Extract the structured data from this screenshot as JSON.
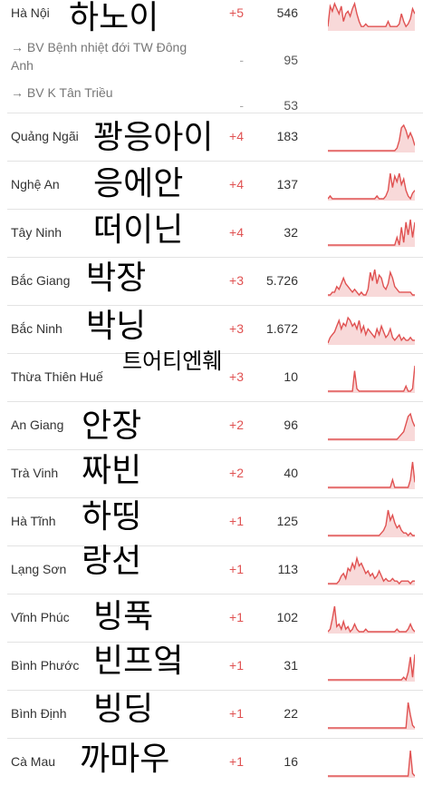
{
  "accent": "#e05252",
  "rows": [
    {
      "name": "Hà Nội",
      "ko": "하노이",
      "delta": "+5",
      "total": "546",
      "spark": [
        1,
        9,
        7,
        10,
        8,
        6,
        9,
        3,
        6,
        7,
        5,
        8,
        10,
        6,
        3,
        1,
        1,
        2,
        1,
        1,
        1,
        1,
        1,
        1,
        1,
        1,
        1,
        3,
        1,
        1,
        1,
        1,
        2,
        6,
        3,
        1,
        2,
        4,
        8,
        6
      ]
    },
    {
      "name": "→ BV Bệnh nhiệt đới TW Đông Anh",
      "delta": "-",
      "total": "95",
      "sub": true
    },
    {
      "name": "→ BV K Tân Triều",
      "delta": "-",
      "total": "53",
      "sub": true
    },
    {
      "name": "Quảng Ngãi",
      "ko": "꽝응아이",
      "delta": "+4",
      "total": "183",
      "spark": [
        0,
        0,
        0,
        0,
        0,
        0,
        0,
        0,
        0,
        0,
        0,
        0,
        0,
        0,
        0,
        0,
        0,
        0,
        0,
        0,
        0,
        0,
        0,
        0,
        0,
        0,
        0,
        0,
        0,
        0,
        0,
        1,
        4,
        9,
        10,
        8,
        5,
        7,
        5,
        2
      ]
    },
    {
      "name": "Nghệ An",
      "ko": "응에안",
      "delta": "+4",
      "total": "137",
      "spark": [
        0,
        1,
        0,
        0,
        0,
        0,
        0,
        0,
        0,
        0,
        0,
        0,
        0,
        0,
        0,
        0,
        0,
        0,
        0,
        0,
        0,
        0,
        1,
        0,
        0,
        0,
        1,
        3,
        9,
        4,
        8,
        6,
        9,
        5,
        7,
        3,
        1,
        0,
        2,
        3
      ]
    },
    {
      "name": "Tây Ninh",
      "ko": "떠이닌",
      "delta": "+4",
      "total": "32",
      "spark": [
        0,
        0,
        0,
        0,
        0,
        0,
        0,
        0,
        0,
        0,
        0,
        0,
        0,
        0,
        0,
        0,
        0,
        0,
        0,
        0,
        0,
        0,
        0,
        0,
        0,
        0,
        0,
        0,
        0,
        0,
        0,
        3,
        0,
        7,
        1,
        9,
        4,
        10,
        3,
        9
      ]
    },
    {
      "name": "Bắc Giang",
      "ko": "박장",
      "delta": "+3",
      "total": "5.726",
      "spark": [
        0,
        0,
        1,
        1,
        3,
        2,
        4,
        6,
        4,
        3,
        2,
        1,
        2,
        1,
        0,
        1,
        0,
        0,
        2,
        8,
        5,
        9,
        4,
        7,
        6,
        3,
        2,
        4,
        8,
        6,
        3,
        2,
        1,
        1,
        1,
        1,
        1,
        1,
        0,
        0
      ]
    },
    {
      "name": "Bắc Ninh",
      "ko": "박닝",
      "delta": "+3",
      "total": "1.672",
      "spark": [
        0,
        2,
        3,
        4,
        6,
        8,
        5,
        7,
        6,
        9,
        8,
        6,
        7,
        5,
        8,
        4,
        6,
        3,
        5,
        4,
        3,
        2,
        5,
        3,
        6,
        4,
        2,
        3,
        5,
        2,
        1,
        2,
        3,
        1,
        2,
        1,
        1,
        2,
        1,
        1
      ]
    },
    {
      "name": "Thừa Thiên Huế",
      "ko": "트어티엔훼",
      "koSmall": true,
      "delta": "+3",
      "total": "10",
      "spark": [
        0,
        0,
        0,
        0,
        0,
        0,
        0,
        0,
        0,
        0,
        0,
        0,
        8,
        1,
        0,
        0,
        0,
        0,
        0,
        0,
        0,
        0,
        0,
        0,
        0,
        0,
        0,
        0,
        0,
        0,
        0,
        0,
        0,
        0,
        0,
        2,
        0,
        0,
        1,
        10
      ]
    },
    {
      "name": "An Giang",
      "ko": "안장",
      "delta": "+2",
      "total": "96",
      "spark": [
        0,
        0,
        0,
        0,
        0,
        0,
        0,
        0,
        0,
        0,
        0,
        0,
        0,
        0,
        0,
        0,
        0,
        0,
        0,
        0,
        0,
        0,
        0,
        0,
        0,
        0,
        0,
        0,
        0,
        0,
        0,
        0,
        1,
        2,
        3,
        6,
        9,
        10,
        7,
        5
      ]
    },
    {
      "name": "Trà Vinh",
      "ko": "짜빈",
      "delta": "+2",
      "total": "40",
      "spark": [
        0,
        0,
        0,
        0,
        0,
        0,
        0,
        0,
        0,
        0,
        0,
        0,
        0,
        0,
        0,
        0,
        0,
        0,
        0,
        0,
        0,
        0,
        0,
        0,
        0,
        0,
        0,
        0,
        0,
        3,
        0,
        0,
        0,
        0,
        0,
        0,
        0,
        3,
        10,
        2
      ]
    },
    {
      "name": "Hà Tĩnh",
      "ko": "하띵",
      "delta": "+1",
      "total": "125",
      "spark": [
        0,
        0,
        0,
        0,
        0,
        0,
        0,
        0,
        0,
        0,
        0,
        0,
        0,
        0,
        0,
        0,
        0,
        0,
        0,
        0,
        0,
        0,
        0,
        0,
        1,
        2,
        4,
        10,
        6,
        8,
        5,
        3,
        4,
        2,
        1,
        1,
        0,
        1,
        0,
        0
      ]
    },
    {
      "name": "Lạng Sơn",
      "ko": "랑선",
      "delta": "+1",
      "total": "113",
      "spark": [
        0,
        0,
        0,
        0,
        0,
        1,
        3,
        4,
        2,
        6,
        5,
        8,
        6,
        10,
        7,
        8,
        6,
        4,
        5,
        3,
        4,
        2,
        3,
        5,
        3,
        1,
        2,
        1,
        1,
        2,
        1,
        1,
        0,
        1,
        1,
        1,
        1,
        0,
        1,
        1
      ]
    },
    {
      "name": "Vĩnh Phúc",
      "ko": "빙푹",
      "delta": "+1",
      "total": "102",
      "spark": [
        0,
        1,
        5,
        10,
        2,
        3,
        1,
        4,
        1,
        2,
        0,
        1,
        3,
        1,
        0,
        0,
        0,
        1,
        0,
        0,
        0,
        0,
        0,
        0,
        0,
        0,
        0,
        0,
        0,
        0,
        0,
        1,
        0,
        0,
        0,
        0,
        1,
        3,
        1,
        0
      ]
    },
    {
      "name": "Bình Phước",
      "ko": "빈프엌",
      "delta": "+1",
      "total": "31",
      "spark": [
        0,
        0,
        0,
        0,
        0,
        0,
        0,
        0,
        0,
        0,
        0,
        0,
        0,
        0,
        0,
        0,
        0,
        0,
        0,
        0,
        0,
        0,
        0,
        0,
        0,
        0,
        0,
        0,
        0,
        0,
        0,
        0,
        0,
        0,
        1,
        0,
        3,
        9,
        1,
        10
      ]
    },
    {
      "name": "Bình Định",
      "ko": "빙딩",
      "delta": "+1",
      "total": "22",
      "spark": [
        0,
        0,
        0,
        0,
        0,
        0,
        0,
        0,
        0,
        0,
        0,
        0,
        0,
        0,
        0,
        0,
        0,
        0,
        0,
        0,
        0,
        0,
        0,
        0,
        0,
        0,
        0,
        0,
        0,
        0,
        0,
        0,
        0,
        0,
        0,
        0,
        10,
        5,
        1,
        0
      ]
    },
    {
      "name": "Cà Mau",
      "ko": "까마우",
      "delta": "+1",
      "total": "16",
      "spark": [
        0,
        0,
        0,
        0,
        0,
        0,
        0,
        0,
        0,
        0,
        0,
        0,
        0,
        0,
        0,
        0,
        0,
        0,
        0,
        0,
        0,
        0,
        0,
        0,
        0,
        0,
        0,
        0,
        0,
        0,
        0,
        0,
        0,
        0,
        0,
        0,
        0,
        10,
        1,
        0
      ]
    }
  ]
}
